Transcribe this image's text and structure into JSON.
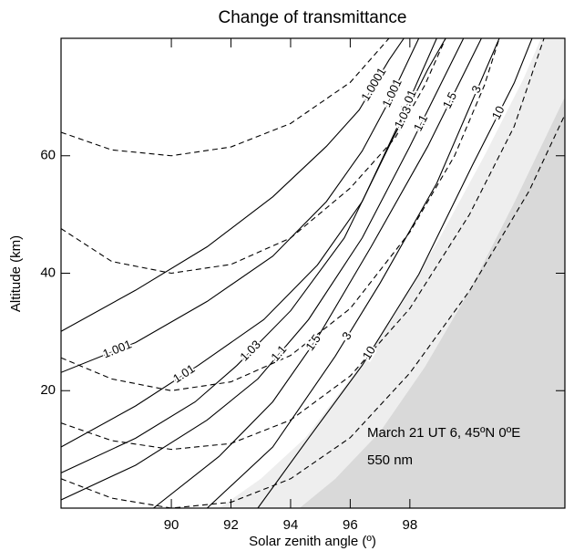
{
  "chart_data": {
    "type": "line",
    "title": "Change of transmittance",
    "xlabel": "Solar zenith angle (º)",
    "ylabel": "Altitude (km)",
    "annotations": [
      "March 21 UT 6, 45ºN 0ºE",
      "550 nm"
    ],
    "xlim": [
      86.3,
      103.2
    ],
    "ylim": [
      0,
      80
    ],
    "xticks": [
      90,
      92,
      94,
      96,
      98
    ],
    "yticks": [
      20,
      40,
      60
    ],
    "shades": [
      {
        "color": "#eeeeee",
        "x": [
          91.6,
          93,
          94.5,
          96,
          97.5,
          99,
          100.5,
          101.8,
          102.4
        ],
        "y": [
          0,
          5,
          12,
          22,
          33,
          46,
          60,
          73,
          80
        ]
      },
      {
        "color": "#d9d9d9",
        "x": [
          94.3,
          95.5,
          97,
          98.5,
          100,
          101.5,
          103.2
        ],
        "y": [
          0,
          5,
          13,
          24,
          37,
          52,
          70
        ]
      }
    ],
    "series": [
      {
        "name": "1.0001",
        "color": "#000",
        "dash": false,
        "x": [
          86.3,
          88.8,
          91.2,
          93.4,
          95.2,
          96.3,
          97.3,
          97.8
        ],
        "y": [
          30.1,
          37.1,
          44.5,
          53,
          61.6,
          67.8,
          76.3,
          80
        ]
      },
      {
        "name": "1.001",
        "color": "#000",
        "dash": false,
        "x": [
          86.3,
          88.8,
          91.2,
          93.4,
          95.2,
          96.4,
          97.3,
          98.3
        ],
        "y": [
          23.1,
          28.2,
          35.2,
          42.9,
          52.2,
          60.8,
          69.3,
          80
        ]
      },
      {
        "name": "1.01",
        "color": "#000",
        "dash": false,
        "x": [
          86.3,
          88.8,
          90.9,
          93.1,
          94.9,
          96.4,
          97.7,
          98.9
        ],
        "y": [
          10.4,
          17.4,
          24.3,
          32.1,
          41.4,
          52.2,
          66.2,
          80
        ]
      },
      {
        "name": "1.03",
        "color": "#000",
        "dash": false,
        "x": [
          86.3,
          88.8,
          90.8,
          92.2,
          94,
          95.8,
          97.3,
          98.6,
          99.2
        ],
        "y": [
          6,
          11.9,
          18.1,
          24.3,
          33.6,
          46,
          61.6,
          74.7,
          80
        ]
      },
      {
        "name": "1.1",
        "color": "#000",
        "dash": false,
        "x": [
          86.3,
          88.8,
          91.2,
          92.9,
          94.6,
          96.4,
          98,
          99.8
        ],
        "y": [
          1.4,
          7.3,
          15,
          22,
          32.1,
          46,
          61.6,
          80
        ]
      },
      {
        "name": "1.5",
        "color": "#000",
        "dash": false,
        "x": [
          89.4,
          91.6,
          93.4,
          94.9,
          96.7,
          98.6,
          100.4
        ],
        "y": [
          0,
          8.8,
          18.1,
          29,
          44.5,
          61.6,
          80
        ]
      },
      {
        "name": "3",
        "color": "#000",
        "dash": false,
        "x": [
          91.2,
          93.4,
          95.5,
          97,
          98.9,
          101
        ],
        "y": [
          0,
          10.4,
          25.9,
          38.3,
          55.3,
          80
        ]
      },
      {
        "name": "10",
        "color": "#000",
        "dash": false,
        "x": [
          92.9,
          94.6,
          96.4,
          98.3,
          100.1,
          101.5,
          102.1
        ],
        "y": [
          0,
          11.9,
          24.3,
          39.8,
          58.4,
          72.4,
          80
        ]
      },
      {
        "color": "#000",
        "dash": true,
        "x": [
          86.3,
          88,
          90,
          92,
          94,
          96,
          97.3
        ],
        "y": [
          64,
          61,
          60,
          61.5,
          65.5,
          72.5,
          80
        ]
      },
      {
        "color": "#000",
        "dash": true,
        "x": [
          86.3,
          88,
          90,
          92,
          94,
          96,
          97.5,
          98.5,
          99.2
        ],
        "y": [
          47.6,
          42,
          40,
          41.5,
          46,
          54.5,
          63,
          72,
          80
        ]
      },
      {
        "color": "#000",
        "dash": true,
        "x": [
          86.3,
          88,
          90,
          92,
          94,
          96,
          98,
          99.5,
          100.5,
          101
        ],
        "y": [
          25.6,
          22,
          20,
          21.5,
          26,
          34,
          47,
          60,
          72,
          80
        ]
      },
      {
        "color": "#000",
        "dash": true,
        "x": [
          86.3,
          88,
          90,
          92,
          94,
          96,
          98,
          100,
          101.5,
          102.5
        ],
        "y": [
          14.5,
          11.5,
          10,
          11,
          15,
          22.5,
          34,
          50,
          65,
          80
        ]
      },
      {
        "color": "#000",
        "dash": true,
        "x": [
          86.3,
          88,
          90,
          92,
          94,
          96,
          98,
          100,
          102,
          103.2
        ],
        "y": [
          5,
          1.7,
          0,
          1,
          5,
          12,
          23,
          37,
          54,
          67
        ]
      }
    ]
  }
}
